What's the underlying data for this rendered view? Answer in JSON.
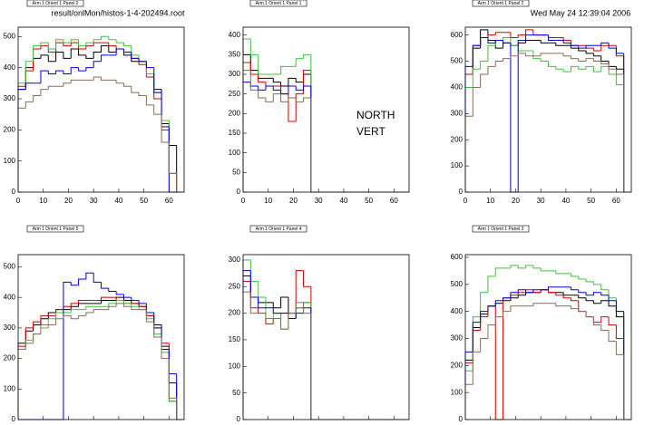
{
  "header": {
    "file": "result/onlMon/histos-1-4-202494.root",
    "date": "Wed May 24 12:39:04 2006"
  },
  "annotation": [
    "NORTH",
    "VERT"
  ],
  "chart_data": [
    {
      "type": "histogram",
      "title": "Arm 1 Orient 1 Panel 0",
      "bins": [
        0,
        3,
        6,
        9,
        12,
        15,
        18,
        21,
        24,
        27,
        30,
        33,
        36,
        39,
        42,
        45,
        48,
        51,
        54,
        57,
        60,
        63,
        66
      ],
      "xlim": [
        0,
        66
      ],
      "xticks": [
        0,
        10,
        20,
        30,
        40,
        50,
        60
      ],
      "ylim": [
        0,
        530
      ],
      "yticks": [
        0,
        100,
        200,
        300,
        400,
        500
      ],
      "series": [
        {
          "name": "black",
          "color": "#000000",
          "values": [
            330,
            400,
            430,
            440,
            420,
            450,
            430,
            460,
            440,
            430,
            450,
            470,
            450,
            460,
            440,
            420,
            420,
            380,
            330,
            220,
            150,
            0
          ]
        },
        {
          "name": "red",
          "color": "#d00000",
          "values": [
            340,
            390,
            460,
            470,
            450,
            480,
            470,
            480,
            460,
            470,
            480,
            480,
            470,
            460,
            450,
            430,
            410,
            370,
            300,
            200,
            60,
            0
          ]
        },
        {
          "name": "green",
          "color": "#40c040",
          "values": [
            350,
            420,
            470,
            480,
            460,
            490,
            480,
            490,
            470,
            480,
            490,
            500,
            490,
            480,
            470,
            440,
            420,
            380,
            320,
            230,
            0,
            0
          ]
        },
        {
          "name": "blue",
          "color": "#0000e0",
          "values": [
            330,
            350,
            350,
            390,
            380,
            390,
            380,
            400,
            390,
            400,
            420,
            440,
            440,
            460,
            450,
            430,
            420,
            400,
            320,
            210,
            0,
            0
          ]
        },
        {
          "name": "brown",
          "color": "#8b6b5a",
          "values": [
            270,
            290,
            310,
            330,
            340,
            340,
            350,
            360,
            360,
            360,
            370,
            360,
            360,
            350,
            340,
            320,
            310,
            280,
            250,
            160,
            60,
            0
          ]
        }
      ]
    },
    {
      "type": "histogram",
      "title": "Arm 1 Orient 1 Panel 1",
      "bins": [
        0,
        3,
        6,
        9,
        12,
        15,
        18,
        21,
        24,
        27,
        30,
        33,
        36,
        39,
        42,
        45,
        48,
        51,
        54,
        57,
        60,
        63,
        66
      ],
      "xlim": [
        0,
        66
      ],
      "xticks": [
        0,
        10,
        20,
        30,
        40,
        50,
        60
      ],
      "ylim": [
        0,
        420
      ],
      "yticks": [
        0,
        50,
        100,
        150,
        200,
        250,
        300,
        350,
        400
      ],
      "series": [
        {
          "name": "black",
          "color": "#000000",
          "values": [
            350,
            310,
            290,
            290,
            280,
            270,
            290,
            280,
            300,
            0,
            0,
            0,
            0,
            0,
            0,
            0,
            0,
            0,
            0,
            0,
            0,
            0
          ]
        },
        {
          "name": "red",
          "color": "#d00000",
          "values": [
            330,
            300,
            280,
            270,
            270,
            250,
            180,
            250,
            310,
            0,
            0,
            0,
            0,
            0,
            0,
            0,
            0,
            0,
            0,
            0,
            0,
            0
          ]
        },
        {
          "name": "green",
          "color": "#40c040",
          "values": [
            390,
            350,
            300,
            300,
            300,
            320,
            320,
            340,
            350,
            0,
            0,
            0,
            0,
            0,
            0,
            0,
            0,
            0,
            0,
            0,
            0,
            0
          ]
        },
        {
          "name": "blue",
          "color": "#0000e0",
          "values": [
            280,
            270,
            260,
            270,
            260,
            250,
            270,
            260,
            270,
            0,
            0,
            0,
            0,
            0,
            0,
            0,
            0,
            0,
            0,
            0,
            0,
            0
          ]
        },
        {
          "name": "brown",
          "color": "#8b6b5a",
          "values": [
            310,
            260,
            240,
            230,
            250,
            230,
            240,
            230,
            240,
            0,
            0,
            0,
            0,
            0,
            0,
            0,
            0,
            0,
            0,
            0,
            0,
            0
          ]
        }
      ]
    },
    {
      "type": "histogram",
      "title": "Arm 1 Orient 1 Panel 2",
      "bins": [
        0,
        3,
        6,
        9,
        12,
        15,
        18,
        21,
        24,
        27,
        30,
        33,
        36,
        39,
        42,
        45,
        48,
        51,
        54,
        57,
        60,
        63,
        66
      ],
      "xlim": [
        0,
        66
      ],
      "xticks": [
        0,
        10,
        20,
        30,
        40,
        50,
        60
      ],
      "ylim": [
        0,
        630
      ],
      "yticks": [
        0,
        100,
        200,
        300,
        400,
        500,
        600
      ],
      "series": [
        {
          "name": "black",
          "color": "#000000",
          "values": [
            450,
            550,
            620,
            580,
            550,
            570,
            560,
            570,
            580,
            580,
            570,
            570,
            560,
            560,
            550,
            540,
            530,
            520,
            500,
            480,
            470,
            0
          ]
        },
        {
          "name": "red",
          "color": "#d00000",
          "values": [
            450,
            560,
            590,
            600,
            610,
            610,
            590,
            600,
            620,
            600,
            600,
            590,
            590,
            580,
            560,
            560,
            550,
            540,
            560,
            560,
            520,
            0
          ]
        },
        {
          "name": "green",
          "color": "#40c040",
          "values": [
            400,
            470,
            500,
            560,
            580,
            590,
            560,
            540,
            540,
            510,
            500,
            480,
            470,
            460,
            480,
            470,
            480,
            460,
            480,
            450,
            410,
            0
          ]
        },
        {
          "name": "blue",
          "color": "#0000e0",
          "values": [
            480,
            560,
            590,
            570,
            580,
            570,
            0,
            580,
            600,
            600,
            600,
            580,
            580,
            570,
            560,
            550,
            560,
            560,
            570,
            550,
            530,
            0
          ]
        },
        {
          "name": "brown",
          "color": "#8b6b5a",
          "values": [
            290,
            400,
            450,
            480,
            500,
            510,
            520,
            530,
            520,
            520,
            530,
            530,
            530,
            520,
            510,
            500,
            510,
            500,
            490,
            470,
            450,
            0
          ]
        }
      ]
    },
    {
      "type": "histogram",
      "title": "Arm 1 Orient 1 Panel 5",
      "bins": [
        0,
        3,
        6,
        9,
        12,
        15,
        18,
        21,
        24,
        27,
        30,
        33,
        36,
        39,
        42,
        45,
        48,
        51,
        54,
        57,
        60,
        63,
        66
      ],
      "xlim": [
        0,
        66
      ],
      "xticks": [
        0,
        10,
        20,
        30,
        40,
        50,
        60
      ],
      "ylim": [
        0,
        540
      ],
      "yticks": [
        0,
        100,
        200,
        300,
        400,
        500
      ],
      "series": [
        {
          "name": "black",
          "color": "#000000",
          "values": [
            250,
            290,
            310,
            330,
            350,
            360,
            360,
            370,
            380,
            380,
            380,
            390,
            390,
            400,
            390,
            380,
            370,
            340,
            310,
            240,
            120,
            0
          ]
        },
        {
          "name": "red",
          "color": "#d00000",
          "values": [
            240,
            300,
            320,
            340,
            340,
            360,
            370,
            380,
            390,
            390,
            390,
            400,
            400,
            390,
            380,
            380,
            370,
            340,
            300,
            250,
            60,
            0
          ]
        },
        {
          "name": "green",
          "color": "#40c040",
          "values": [
            230,
            260,
            280,
            300,
            330,
            350,
            350,
            360,
            360,
            370,
            370,
            370,
            380,
            390,
            380,
            370,
            360,
            330,
            280,
            220,
            60,
            0
          ]
        },
        {
          "name": "blue",
          "color": "#0000e0",
          "values": [
            0,
            0,
            0,
            0,
            0,
            0,
            450,
            440,
            460,
            480,
            450,
            430,
            420,
            410,
            400,
            390,
            380,
            350,
            300,
            230,
            150,
            0
          ]
        },
        {
          "name": "brown",
          "color": "#8b6b5a",
          "values": [
            230,
            250,
            280,
            310,
            310,
            330,
            340,
            330,
            340,
            350,
            360,
            360,
            370,
            380,
            370,
            360,
            360,
            320,
            270,
            200,
            70,
            0
          ]
        }
      ]
    },
    {
      "type": "histogram",
      "title": "Arm 1 Orient 1 Panel 4",
      "bins": [
        0,
        3,
        6,
        9,
        12,
        15,
        18,
        21,
        24,
        27,
        30,
        33,
        36,
        39,
        42,
        45,
        48,
        51,
        54,
        57,
        60,
        63,
        66
      ],
      "xlim": [
        0,
        66
      ],
      "xticks": [
        0,
        10,
        20,
        30,
        40,
        50,
        60
      ],
      "ylim": [
        0,
        310
      ],
      "yticks": [
        0,
        50,
        100,
        150,
        200,
        250,
        300
      ],
      "series": [
        {
          "name": "black",
          "color": "#000000",
          "values": [
            270,
            230,
            220,
            220,
            210,
            230,
            200,
            210,
            220,
            0,
            0,
            0,
            0,
            0,
            0,
            0,
            0,
            0,
            0,
            0,
            0,
            0
          ]
        },
        {
          "name": "red",
          "color": "#d00000",
          "values": [
            260,
            210,
            200,
            180,
            190,
            200,
            190,
            280,
            250,
            0,
            0,
            0,
            0,
            0,
            0,
            0,
            0,
            0,
            0,
            0,
            0,
            0
          ]
        },
        {
          "name": "green",
          "color": "#40c040",
          "values": [
            300,
            260,
            230,
            190,
            200,
            170,
            190,
            210,
            220,
            0,
            0,
            0,
            0,
            0,
            0,
            0,
            0,
            0,
            0,
            0,
            0,
            0
          ]
        },
        {
          "name": "blue",
          "color": "#0000e0",
          "values": [
            280,
            230,
            210,
            210,
            200,
            200,
            190,
            200,
            210,
            0,
            0,
            0,
            0,
            0,
            0,
            0,
            0,
            0,
            0,
            0,
            0,
            0
          ]
        },
        {
          "name": "brown",
          "color": "#8b6b5a",
          "values": [
            240,
            200,
            200,
            190,
            190,
            170,
            200,
            220,
            200,
            0,
            0,
            0,
            0,
            0,
            0,
            0,
            0,
            0,
            0,
            0,
            0,
            0
          ]
        }
      ]
    },
    {
      "type": "histogram",
      "title": "Arm 1 Orient 1 Panel 3",
      "bins": [
        0,
        3,
        6,
        9,
        12,
        15,
        18,
        21,
        24,
        27,
        30,
        33,
        36,
        39,
        42,
        45,
        48,
        51,
        54,
        57,
        60,
        63,
        66
      ],
      "xlim": [
        0,
        66
      ],
      "xticks": [
        0,
        10,
        20,
        30,
        40,
        50,
        60
      ],
      "ylim": [
        0,
        610
      ],
      "yticks": [
        0,
        100,
        200,
        300,
        400,
        500,
        600
      ],
      "series": [
        {
          "name": "black",
          "color": "#000000",
          "values": [
            220,
            340,
            390,
            420,
            430,
            440,
            450,
            460,
            470,
            470,
            480,
            470,
            470,
            460,
            460,
            450,
            440,
            430,
            440,
            420,
            380,
            0
          ]
        },
        {
          "name": "red",
          "color": "#d00000",
          "values": [
            210,
            330,
            380,
            420,
            0,
            450,
            460,
            470,
            480,
            470,
            480,
            470,
            460,
            450,
            440,
            400,
            380,
            360,
            380,
            350,
            300,
            0
          ]
        },
        {
          "name": "green",
          "color": "#40c040",
          "values": [
            180,
            380,
            470,
            530,
            560,
            560,
            570,
            560,
            570,
            560,
            550,
            550,
            540,
            540,
            530,
            520,
            510,
            500,
            480,
            450,
            400,
            0
          ]
        },
        {
          "name": "blue",
          "color": "#0000e0",
          "values": [
            250,
            360,
            400,
            420,
            440,
            450,
            470,
            480,
            470,
            480,
            480,
            490,
            490,
            490,
            480,
            470,
            460,
            470,
            460,
            440,
            400,
            0
          ]
        },
        {
          "name": "brown",
          "color": "#8b6b5a",
          "values": [
            130,
            250,
            300,
            350,
            380,
            400,
            420,
            420,
            420,
            430,
            430,
            430,
            420,
            420,
            410,
            400,
            380,
            350,
            330,
            290,
            240,
            0
          ]
        }
      ]
    }
  ]
}
